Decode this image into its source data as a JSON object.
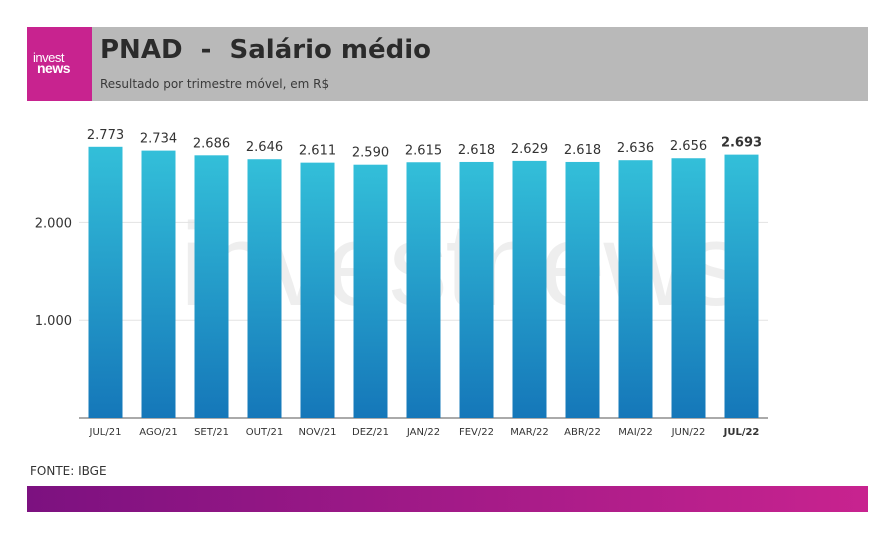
{
  "brand": {
    "logo_line1": "invest",
    "logo_line2": "news",
    "watermark": "investnews"
  },
  "header": {
    "title": "PNAD  -  Salário médio",
    "subtitle": "Resultado por trimestre móvel, em R$"
  },
  "source": "FONTE: IBGE",
  "colors": {
    "bar_top": "#33bfd9",
    "bar_bottom": "#1577b9",
    "brand_pink": "#c8238f",
    "brand_purple": "#7c1180",
    "header_gray": "#b9b9b9"
  },
  "chart_data": {
    "type": "bar",
    "categories": [
      "JUL/21",
      "AGO/21",
      "SET/21",
      "OUT/21",
      "NOV/21",
      "DEZ/21",
      "JAN/22",
      "FEV/22",
      "MAR/22",
      "ABR/22",
      "MAI/22",
      "JUN/22",
      "JUL/22"
    ],
    "values": [
      2773,
      2734,
      2686,
      2646,
      2611,
      2590,
      2615,
      2618,
      2629,
      2618,
      2636,
      2656,
      2693
    ],
    "value_labels": [
      "2.773",
      "2.734",
      "2.686",
      "2.646",
      "2.611",
      "2.590",
      "2.615",
      "2.618",
      "2.629",
      "2.618",
      "2.636",
      "2.656",
      "2.693"
    ],
    "highlight_index": 12,
    "y_ticks": [
      1000,
      2000
    ],
    "y_tick_labels": [
      "1.000",
      "2.000"
    ],
    "ylim": [
      0,
      2800
    ],
    "grid": true
  }
}
